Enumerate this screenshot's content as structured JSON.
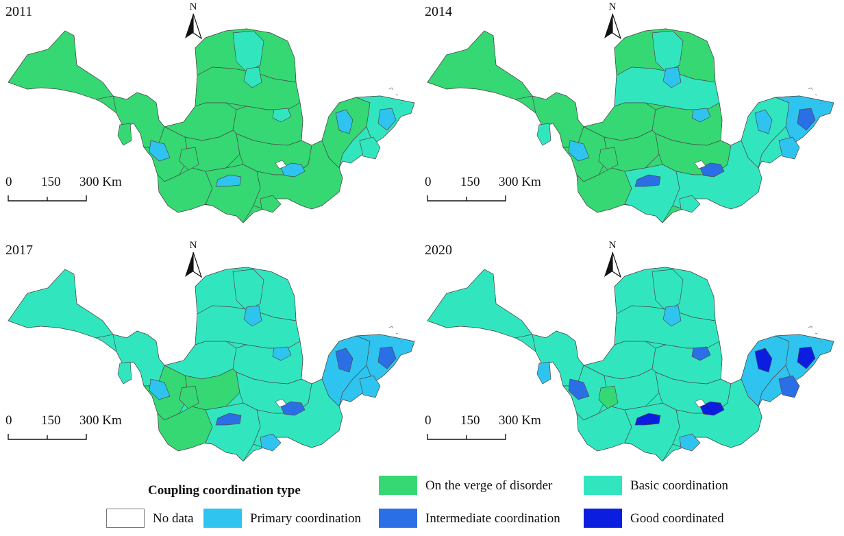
{
  "panels": [
    {
      "year": "2011",
      "scheme": "y2011"
    },
    {
      "year": "2014",
      "scheme": "y2014"
    },
    {
      "year": "2017",
      "scheme": "y2017"
    },
    {
      "year": "2020",
      "scheme": "y2020"
    }
  ],
  "north_arrow": {
    "letter": "N",
    "icon": "north-arrow-icon"
  },
  "scale_bar": {
    "labels": [
      "0",
      "150",
      "300 Km"
    ]
  },
  "legend": {
    "title": "Coupling coordination type",
    "items": [
      {
        "label": "No data",
        "color": "#ffffff",
        "key": "nodata"
      },
      {
        "label": "On the verge of disorder",
        "color": "#35d872",
        "key": "verge"
      },
      {
        "label": "Basic coordination",
        "color": "#31e6bf",
        "key": "basic"
      },
      {
        "label": "Primary coordination",
        "color": "#2ec4ef",
        "key": "primary"
      },
      {
        "label": "Intermediate coordination",
        "color": "#2b6fe6",
        "key": "intermediate"
      },
      {
        "label": "Good coordinated",
        "color": "#0b1ee0",
        "key": "good"
      }
    ]
  }
}
